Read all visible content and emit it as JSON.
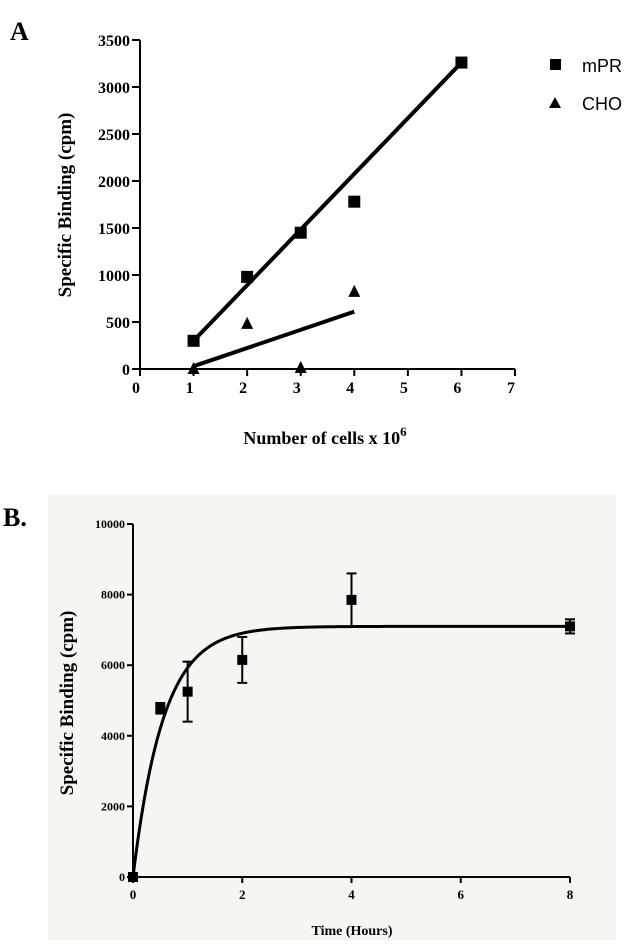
{
  "chart_data": [
    {
      "panel": "A",
      "type": "scatter",
      "xlabel": "Number of cells x 10",
      "xlabel_superscript": "6",
      "ylabel": "Specific Binding (cpm)",
      "xlim": [
        0,
        7
      ],
      "ylim": [
        0,
        3500
      ],
      "xticks": [
        0,
        1,
        2,
        3,
        4,
        5,
        6,
        7
      ],
      "yticks": [
        0,
        500,
        1000,
        1500,
        2000,
        2500,
        3000,
        3500
      ],
      "grid": false,
      "legend_position": "top-right",
      "series": [
        {
          "name": "mPR",
          "marker": "square",
          "color": "#000000",
          "points": [
            [
              1,
              300
            ],
            [
              2,
              980
            ],
            [
              3,
              1450
            ],
            [
              4,
              1780
            ],
            [
              6,
              3260
            ]
          ],
          "fit": [
            [
              1,
              300
            ],
            [
              6,
              3260
            ]
          ]
        },
        {
          "name": "CHO",
          "marker": "triangle",
          "color": "#000000",
          "points": [
            [
              1,
              0
            ],
            [
              2,
              480
            ],
            [
              3,
              10
            ],
            [
              4,
              820
            ]
          ],
          "fit": [
            [
              1,
              30
            ],
            [
              4,
              610
            ]
          ]
        }
      ]
    },
    {
      "panel": "B.",
      "type": "scatter",
      "xlabel": "Time (Hours)",
      "ylabel": "Specific Binding (cpm)",
      "xlim": [
        0,
        8
      ],
      "ylim": [
        0,
        10000
      ],
      "xticks": [
        0,
        2,
        4,
        6,
        8
      ],
      "yticks": [
        0,
        2000,
        4000,
        6000,
        8000,
        10000
      ],
      "grid": false,
      "series": [
        {
          "marker": "square",
          "color": "#000000",
          "points": [
            [
              0,
              0,
              0
            ],
            [
              0.5,
              4780,
              150
            ],
            [
              1,
              5250,
              850
            ],
            [
              2,
              6150,
              650
            ],
            [
              4,
              7850,
              750
            ],
            [
              8,
              7100,
              200
            ]
          ],
          "fit": {
            "type": "one-phase association",
            "plateau": 7100,
            "k": 1.8
          }
        }
      ]
    }
  ]
}
